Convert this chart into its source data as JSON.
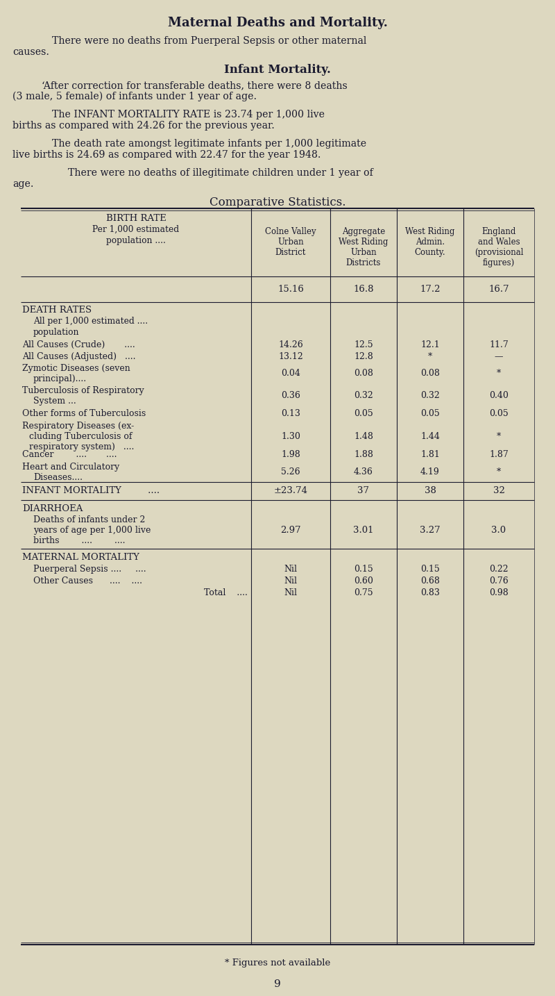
{
  "bg_color": "#ddd8c0",
  "text_color": "#1a1a2e",
  "title": "Maternal Deaths and Mortality.",
  "footer": "* Figures not available",
  "page_num": "9",
  "col_headers": [
    "Colne Valley\nUrban\nDistrict",
    "Aggregate\nWest Riding\nUrban\nDistricts",
    "West Riding\nAdmin.\nCounty.",
    "England\nand Wales\n(provisional\nfigures)"
  ],
  "birth_rate_values": [
    "15.16",
    "16.8",
    "17.2",
    "16.7"
  ],
  "death_rates_values": [
    [
      "14.26",
      "12.5",
      "12.1",
      "11.7"
    ],
    [
      "13.12",
      "12.8",
      "*",
      "—"
    ],
    [
      "0.04",
      "0.08",
      "0.08",
      "*"
    ],
    [
      "0.36",
      "0.32",
      "0.32",
      "0.40"
    ],
    [
      "0.13",
      "0.05",
      "0.05",
      "0.05"
    ],
    [
      "1.30",
      "1.48",
      "1.44",
      "*"
    ],
    [
      "1.98",
      "1.88",
      "1.81",
      "1.87"
    ],
    [
      "5.26",
      "4.36",
      "4.19",
      "*"
    ]
  ],
  "infant_mortality_values": [
    "±23.74",
    "37",
    "38",
    "32"
  ],
  "diarrhoea_values": [
    "2.97",
    "3.01",
    "3.27",
    "3.0"
  ],
  "maternal_values": [
    [
      "Nil",
      "0.15",
      "0.15",
      "0.22"
    ],
    [
      "Nil",
      "0.60",
      "0.68",
      "0.76"
    ],
    [
      "Nil",
      "0.75",
      "0.83",
      "0.98"
    ]
  ]
}
